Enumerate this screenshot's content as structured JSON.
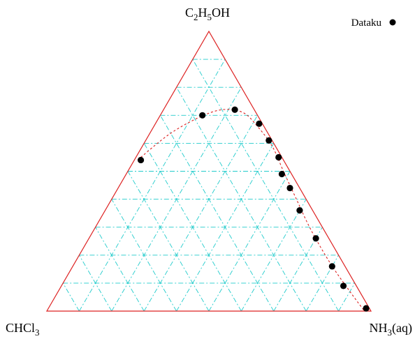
{
  "chart_data": {
    "type": "scatter",
    "subtype": "ternary",
    "vertices": {
      "top": {
        "main": "C",
        "parts": [
          {
            "t": "C"
          },
          {
            "t": "2",
            "sub": true
          },
          {
            "t": "H"
          },
          {
            "t": "5",
            "sub": true
          },
          {
            "t": "OH"
          }
        ]
      },
      "left": {
        "parts": [
          {
            "t": "CHCl"
          },
          {
            "t": "3",
            "sub": true
          }
        ]
      },
      "right": {
        "parts": [
          {
            "t": "NH"
          },
          {
            "t": "3",
            "sub": true
          },
          {
            "t": "(aq)"
          }
        ]
      }
    },
    "axes": {
      "range": [
        0,
        1
      ],
      "grid": true,
      "grid_divisions": 10,
      "grid_style": "dash-dot"
    },
    "series": [
      {
        "name": "Dataku",
        "marker": "filled-circle",
        "color": "#000000",
        "points": [
          {
            "top": 0.54,
            "right": 0.02
          },
          {
            "top": 0.7,
            "right": 0.13
          },
          {
            "top": 0.72,
            "right": 0.22
          },
          {
            "top": 0.67,
            "right": 0.32
          },
          {
            "top": 0.61,
            "right": 0.38
          },
          {
            "top": 0.55,
            "right": 0.44
          },
          {
            "top": 0.49,
            "right": 0.48
          },
          {
            "top": 0.44,
            "right": 0.53
          },
          {
            "top": 0.36,
            "right": 0.6
          },
          {
            "top": 0.26,
            "right": 0.7
          },
          {
            "top": 0.16,
            "right": 0.8
          },
          {
            "top": 0.09,
            "right": 0.87
          },
          {
            "top": 0.01,
            "right": 0.98
          }
        ]
      }
    ],
    "fit_curve": {
      "style": "dashed",
      "color": "#dd2222",
      "points": [
        {
          "top": 0.54,
          "right": 0.01
        },
        {
          "top": 0.63,
          "right": 0.06
        },
        {
          "top": 0.69,
          "right": 0.12
        },
        {
          "top": 0.72,
          "right": 0.18
        },
        {
          "top": 0.71,
          "right": 0.25
        },
        {
          "top": 0.66,
          "right": 0.32
        },
        {
          "top": 0.59,
          "right": 0.4
        },
        {
          "top": 0.5,
          "right": 0.48
        },
        {
          "top": 0.4,
          "right": 0.57
        },
        {
          "top": 0.29,
          "right": 0.67
        },
        {
          "top": 0.17,
          "right": 0.79
        },
        {
          "top": 0.07,
          "right": 0.9
        },
        {
          "top": 0.0,
          "right": 0.98
        }
      ]
    },
    "legend": {
      "position": "top-right"
    },
    "colors": {
      "frame": "#dd2222",
      "grid": "#22cccc",
      "points": "#000000",
      "fit": "#dd2222"
    }
  }
}
